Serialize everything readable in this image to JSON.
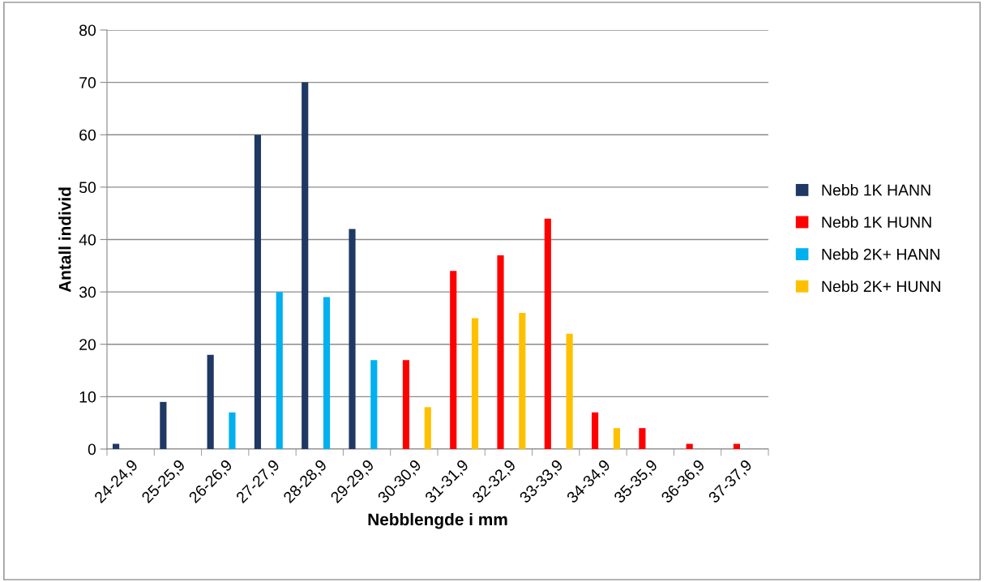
{
  "chart_data": {
    "type": "bar",
    "xlabel": "Nebblengde i mm",
    "ylabel": "Antall individ",
    "categories": [
      "24-24,9",
      "25-25,9",
      "26-26,9",
      "27-27,9",
      "28-28,9",
      "29-29,9",
      "30-30,9",
      "31-31,9",
      "32-32,9",
      "33-33,9",
      "34-34,9",
      "35-35,9",
      "36-36,9",
      "37-37,9"
    ],
    "series": [
      {
        "name": "Nebb 1K HANN",
        "color": "#1f3864",
        "values": [
          1,
          9,
          18,
          60,
          70,
          42,
          null,
          null,
          null,
          null,
          null,
          null,
          null,
          null
        ]
      },
      {
        "name": "Nebb 1K HUNN",
        "color": "#ff0000",
        "values": [
          null,
          null,
          null,
          null,
          null,
          null,
          17,
          34,
          37,
          44,
          7,
          4,
          1,
          1
        ]
      },
      {
        "name": "Nebb 2K+ HANN",
        "color": "#00b0f0",
        "values": [
          null,
          null,
          7,
          30,
          29,
          17,
          null,
          null,
          null,
          null,
          null,
          null,
          null,
          null
        ]
      },
      {
        "name": "Nebb 2K+ HUNN",
        "color": "#ffc000",
        "values": [
          null,
          null,
          null,
          null,
          null,
          null,
          8,
          25,
          26,
          22,
          4,
          null,
          null,
          null
        ]
      }
    ],
    "ylim": [
      0,
      80
    ],
    "yticks": [
      0,
      10,
      20,
      30,
      40,
      50,
      60,
      70,
      80
    ],
    "grid": "y",
    "legend": "right"
  }
}
